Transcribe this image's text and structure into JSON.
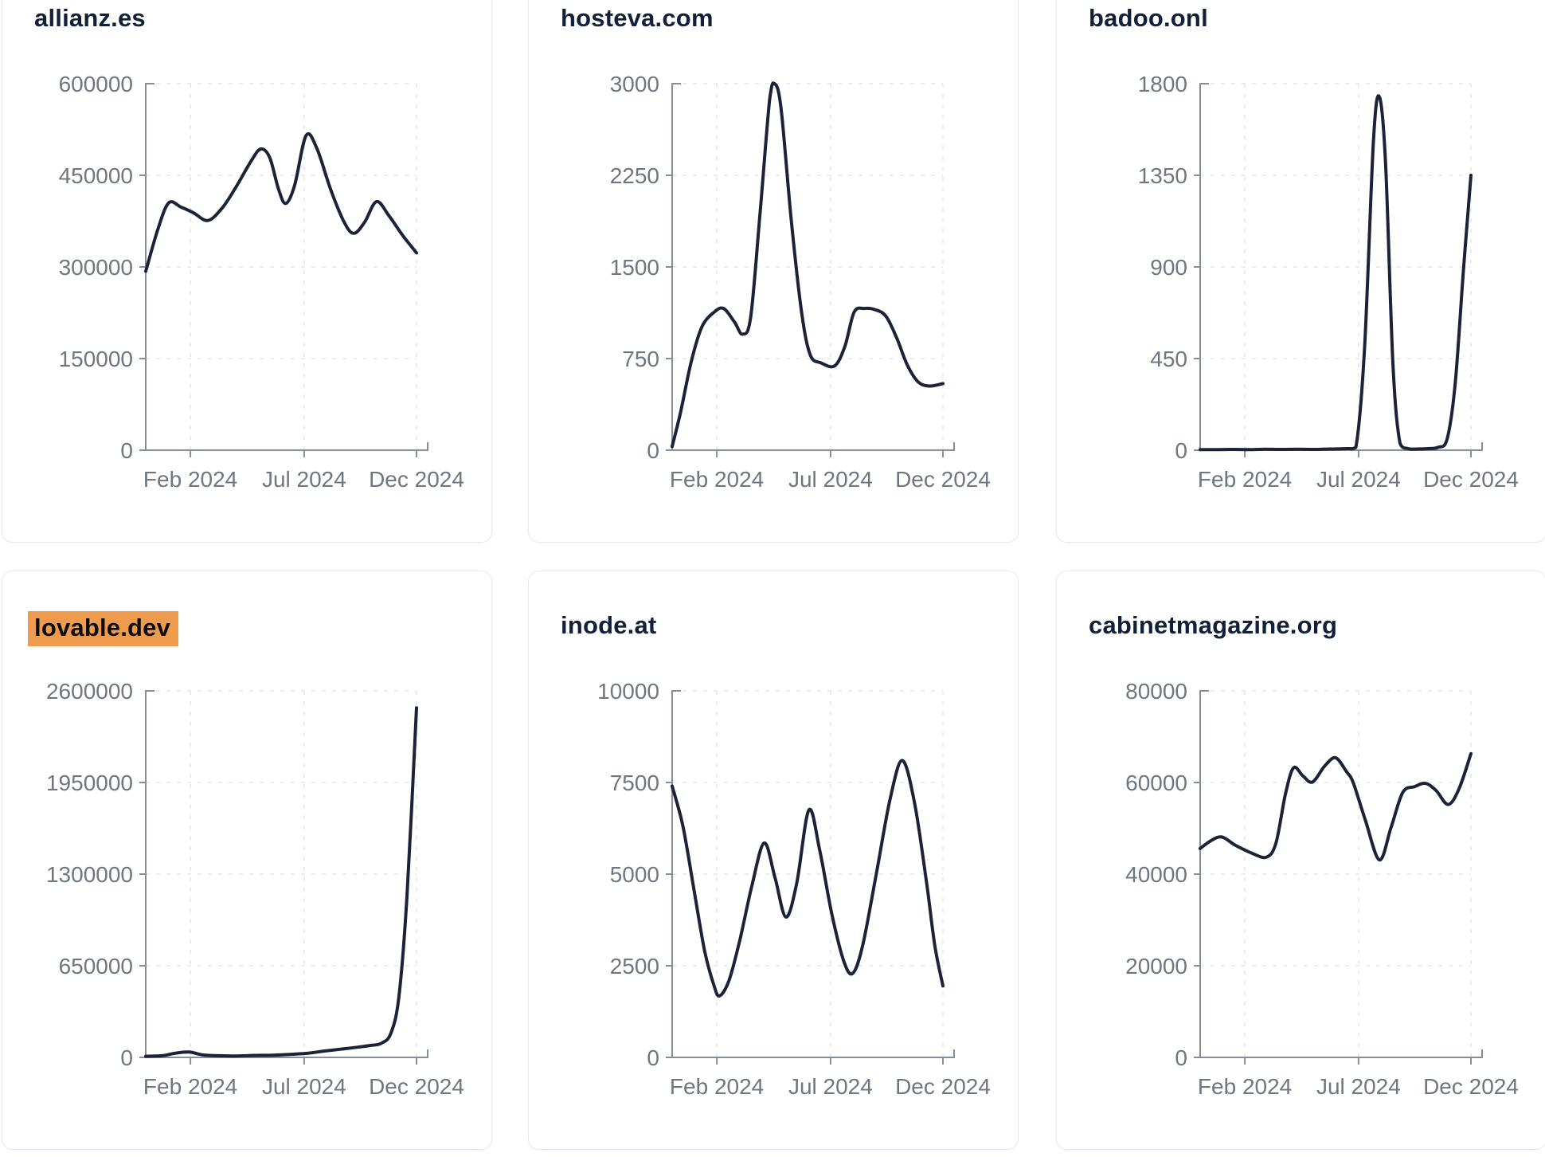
{
  "style": {
    "line_color": "#1b2338",
    "grid_color": "#e4e7ec",
    "axis_color": "#878e99",
    "label_color": "#6e7680",
    "title_color": "#12203a",
    "highlight_bg": "#ee9b4e",
    "highlight_text": "#0c0c0c",
    "card_border": "#e7eaf0",
    "page_background": "#ffffff"
  },
  "chart_data": [
    {
      "type": "line",
      "title": "allianz.es",
      "highlighted": false,
      "ylim": [
        0,
        600000
      ],
      "y_ticks": [
        0,
        150000,
        300000,
        450000,
        600000
      ],
      "x_ticks": [
        {
          "label": "Feb 2024",
          "pos": 0.165
        },
        {
          "label": "Jul 2024",
          "pos": 0.585
        },
        {
          "label": "Dec 2024",
          "pos": 1
        }
      ],
      "points": [
        [
          0,
          293000
        ],
        [
          0.045,
          362000
        ],
        [
          0.085,
          405000
        ],
        [
          0.13,
          398000
        ],
        [
          0.175,
          389000
        ],
        [
          0.23,
          376000
        ],
        [
          0.285,
          398000
        ],
        [
          0.335,
          432000
        ],
        [
          0.39,
          474000
        ],
        [
          0.425,
          493000
        ],
        [
          0.458,
          479000
        ],
        [
          0.49,
          428000
        ],
        [
          0.517,
          404000
        ],
        [
          0.55,
          434000
        ],
        [
          0.592,
          515000
        ],
        [
          0.632,
          494000
        ],
        [
          0.682,
          428000
        ],
        [
          0.732,
          374000
        ],
        [
          0.768,
          355000
        ],
        [
          0.808,
          373000
        ],
        [
          0.852,
          407000
        ],
        [
          0.898,
          384000
        ],
        [
          0.95,
          351000
        ],
        [
          1,
          323000
        ]
      ]
    },
    {
      "type": "line",
      "title": "hosteva.com",
      "highlighted": false,
      "ylim": [
        0,
        3000
      ],
      "y_ticks": [
        0,
        750,
        1500,
        2250,
        3000
      ],
      "x_ticks": [
        {
          "label": "Feb 2024",
          "pos": 0.165
        },
        {
          "label": "Jul 2024",
          "pos": 0.585
        },
        {
          "label": "Dec 2024",
          "pos": 1
        }
      ],
      "points": [
        [
          0,
          30
        ],
        [
          0.03,
          300
        ],
        [
          0.07,
          720
        ],
        [
          0.11,
          1010
        ],
        [
          0.155,
          1130
        ],
        [
          0.19,
          1160
        ],
        [
          0.23,
          1050
        ],
        [
          0.26,
          950
        ],
        [
          0.29,
          1090
        ],
        [
          0.325,
          1950
        ],
        [
          0.36,
          2870
        ],
        [
          0.378,
          3000
        ],
        [
          0.402,
          2800
        ],
        [
          0.44,
          1880
        ],
        [
          0.478,
          1130
        ],
        [
          0.51,
          780
        ],
        [
          0.55,
          715
        ],
        [
          0.6,
          690
        ],
        [
          0.638,
          850
        ],
        [
          0.672,
          1130
        ],
        [
          0.71,
          1160
        ],
        [
          0.75,
          1150
        ],
        [
          0.79,
          1095
        ],
        [
          0.83,
          915
        ],
        [
          0.868,
          700
        ],
        [
          0.908,
          560
        ],
        [
          0.95,
          525
        ],
        [
          1,
          545
        ]
      ]
    },
    {
      "type": "line",
      "title": "badoo.onl",
      "highlighted": false,
      "ylim": [
        0,
        1800
      ],
      "y_ticks": [
        0,
        450,
        900,
        1350,
        1800
      ],
      "x_ticks": [
        {
          "label": "Feb 2024",
          "pos": 0.165
        },
        {
          "label": "Jul 2024",
          "pos": 0.585
        },
        {
          "label": "Dec 2024",
          "pos": 1
        }
      ],
      "points": [
        [
          0,
          3
        ],
        [
          0.06,
          3
        ],
        [
          0.12,
          4
        ],
        [
          0.18,
          3
        ],
        [
          0.24,
          5
        ],
        [
          0.3,
          4
        ],
        [
          0.36,
          5
        ],
        [
          0.42,
          4
        ],
        [
          0.48,
          6
        ],
        [
          0.54,
          8
        ],
        [
          0.575,
          14
        ],
        [
          0.607,
          500
        ],
        [
          0.64,
          1520
        ],
        [
          0.662,
          1735
        ],
        [
          0.685,
          1400
        ],
        [
          0.712,
          420
        ],
        [
          0.738,
          35
        ],
        [
          0.768,
          8
        ],
        [
          0.8,
          6
        ],
        [
          0.84,
          8
        ],
        [
          0.878,
          14
        ],
        [
          0.912,
          55
        ],
        [
          0.942,
          330
        ],
        [
          0.972,
          880
        ],
        [
          1,
          1350
        ]
      ]
    },
    {
      "type": "line",
      "title": "lovable.dev",
      "highlighted": true,
      "ylim": [
        0,
        2600000
      ],
      "y_ticks": [
        0,
        650000,
        1300000,
        1950000,
        2600000
      ],
      "x_ticks": [
        {
          "label": "Feb 2024",
          "pos": 0.165
        },
        {
          "label": "Jul 2024",
          "pos": 0.585
        },
        {
          "label": "Dec 2024",
          "pos": 1
        }
      ],
      "points": [
        [
          0,
          8000
        ],
        [
          0.06,
          12000
        ],
        [
          0.11,
          30000
        ],
        [
          0.16,
          38000
        ],
        [
          0.21,
          18000
        ],
        [
          0.27,
          12000
        ],
        [
          0.33,
          10000
        ],
        [
          0.4,
          14000
        ],
        [
          0.47,
          16000
        ],
        [
          0.54,
          22000
        ],
        [
          0.6,
          30000
        ],
        [
          0.66,
          45000
        ],
        [
          0.72,
          58000
        ],
        [
          0.78,
          72000
        ],
        [
          0.83,
          85000
        ],
        [
          0.87,
          100000
        ],
        [
          0.905,
          170000
        ],
        [
          0.935,
          430000
        ],
        [
          0.965,
          1150000
        ],
        [
          1,
          2480000
        ]
      ]
    },
    {
      "type": "line",
      "title": "inode.at",
      "highlighted": false,
      "ylim": [
        0,
        10000
      ],
      "y_ticks": [
        0,
        2500,
        5000,
        7500,
        10000
      ],
      "x_ticks": [
        {
          "label": "Feb 2024",
          "pos": 0.165
        },
        {
          "label": "Jul 2024",
          "pos": 0.585
        },
        {
          "label": "Dec 2024",
          "pos": 1
        }
      ],
      "points": [
        [
          0,
          7400
        ],
        [
          0.04,
          6300
        ],
        [
          0.08,
          4600
        ],
        [
          0.12,
          2900
        ],
        [
          0.155,
          1950
        ],
        [
          0.175,
          1680
        ],
        [
          0.21,
          2100
        ],
        [
          0.25,
          3200
        ],
        [
          0.295,
          4700
        ],
        [
          0.34,
          5850
        ],
        [
          0.38,
          4900
        ],
        [
          0.42,
          3830
        ],
        [
          0.46,
          4750
        ],
        [
          0.505,
          6750
        ],
        [
          0.545,
          5650
        ],
        [
          0.59,
          3900
        ],
        [
          0.635,
          2600
        ],
        [
          0.668,
          2300
        ],
        [
          0.705,
          3100
        ],
        [
          0.755,
          5050
        ],
        [
          0.805,
          7050
        ],
        [
          0.85,
          8100
        ],
        [
          0.895,
          6950
        ],
        [
          0.94,
          4750
        ],
        [
          0.97,
          3050
        ],
        [
          1,
          1950
        ]
      ]
    },
    {
      "type": "line",
      "title": "cabinetmagazine.org",
      "highlighted": false,
      "ylim": [
        0,
        80000
      ],
      "y_ticks": [
        0,
        20000,
        40000,
        60000,
        80000
      ],
      "x_ticks": [
        {
          "label": "Feb 2024",
          "pos": 0.165
        },
        {
          "label": "Jul 2024",
          "pos": 0.585
        },
        {
          "label": "Dec 2024",
          "pos": 1
        }
      ],
      "points": [
        [
          0,
          45600
        ],
        [
          0.04,
          47300
        ],
        [
          0.08,
          48100
        ],
        [
          0.13,
          46300
        ],
        [
          0.19,
          44600
        ],
        [
          0.245,
          43700
        ],
        [
          0.28,
          46800
        ],
        [
          0.315,
          57500
        ],
        [
          0.345,
          63200
        ],
        [
          0.38,
          61400
        ],
        [
          0.415,
          60100
        ],
        [
          0.46,
          63600
        ],
        [
          0.5,
          65400
        ],
        [
          0.54,
          62400
        ],
        [
          0.565,
          60000
        ],
        [
          0.61,
          51800
        ],
        [
          0.662,
          43100
        ],
        [
          0.705,
          50200
        ],
        [
          0.748,
          57800
        ],
        [
          0.792,
          59100
        ],
        [
          0.832,
          59800
        ],
        [
          0.872,
          58200
        ],
        [
          0.916,
          55200
        ],
        [
          0.956,
          58600
        ],
        [
          1,
          66300
        ]
      ]
    }
  ]
}
